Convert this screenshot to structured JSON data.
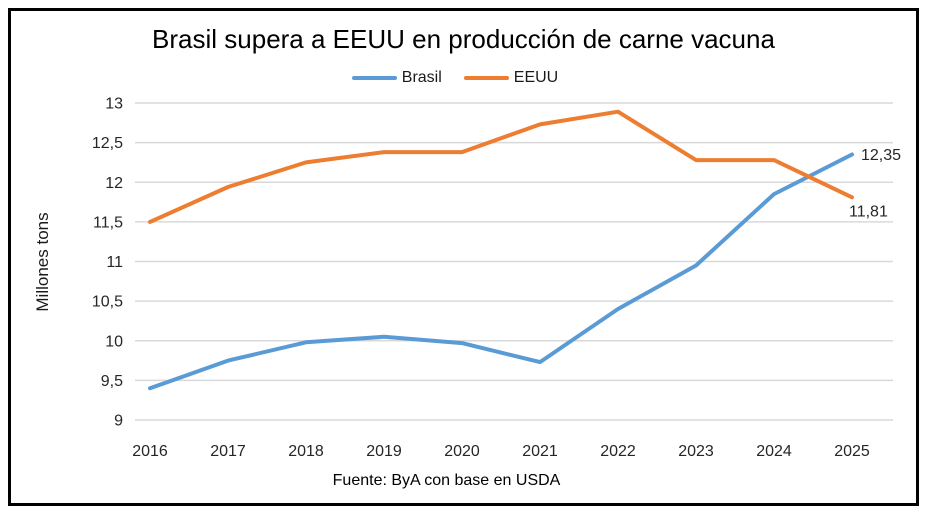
{
  "chart_data": {
    "type": "line",
    "title": "Brasil supera a EEUU en producción de carne vacuna",
    "ylabel": "Millones tons",
    "xlabel": "",
    "source": "Fuente: ByA con base en USDA",
    "categories": [
      "2016",
      "2017",
      "2018",
      "2019",
      "2020",
      "2021",
      "2022",
      "2023",
      "2024",
      "2025"
    ],
    "series": [
      {
        "name": "Brasil",
        "color": "#5B9BD5",
        "values": [
          9.4,
          9.75,
          9.98,
          10.05,
          9.97,
          9.73,
          10.4,
          10.95,
          11.85,
          12.35
        ],
        "end_label": "12,35"
      },
      {
        "name": "EEUU",
        "color": "#ED7D31",
        "values": [
          11.5,
          11.94,
          12.25,
          12.38,
          12.38,
          12.73,
          12.89,
          12.28,
          12.28,
          11.81
        ],
        "end_label": "11,81"
      }
    ],
    "ylim": [
      9,
      13
    ],
    "ytick_values": [
      13,
      12.5,
      12,
      11.5,
      11,
      10.5,
      10,
      9.5,
      9
    ],
    "ytick_labels": [
      "13",
      "12,5",
      "12",
      "11,5",
      "11",
      "10,5",
      "10",
      "9,5",
      "9"
    ],
    "grid": "horizontal",
    "legend_position": "top",
    "colors": {
      "gridline": "#D9D9D9",
      "axis_text": "#262626",
      "frame_border": "#000000",
      "background": "#FFFFFF"
    }
  }
}
